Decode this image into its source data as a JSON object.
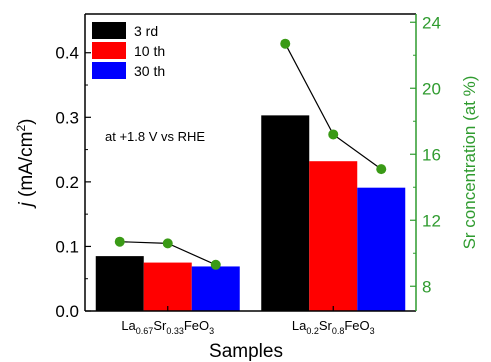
{
  "chart_data": {
    "type": "bar",
    "title": "",
    "xlabel": "Samples",
    "ylabel": "j (mA/cm2)",
    "ylabel_parts": {
      "italic": "j",
      "main": " (mA/cm",
      "sup": "2",
      "end": ")"
    },
    "ylabel_right": "Sr concentration (at %)",
    "ylim": [
      0,
      0.46
    ],
    "ylim_right": [
      6.5,
      24.5
    ],
    "yticks": [
      0.0,
      0.1,
      0.2,
      0.3,
      0.4
    ],
    "ytick_labels": [
      "0.0",
      "0.1",
      "0.2",
      "0.3",
      "0.4"
    ],
    "yticks_right": [
      8,
      12,
      16,
      20,
      24
    ],
    "ytick_labels_right": [
      "8",
      "12",
      "16",
      "20",
      "24"
    ],
    "categories": [
      {
        "label": "La0.67Sr0.33FeO3",
        "parts": [
          [
            "La",
            "n"
          ],
          [
            "0.67",
            "s"
          ],
          [
            "Sr",
            "n"
          ],
          [
            "0.33",
            "s"
          ],
          [
            "FeO",
            "n"
          ],
          [
            "3",
            "s"
          ]
        ]
      },
      {
        "label": "La0.2Sr0.8FeO3",
        "parts": [
          [
            "La",
            "n"
          ],
          [
            "0.2",
            "s"
          ],
          [
            "Sr",
            "n"
          ],
          [
            "0.8",
            "s"
          ],
          [
            "FeO",
            "n"
          ],
          [
            "3",
            "s"
          ]
        ]
      }
    ],
    "series": [
      {
        "name": "3 rd",
        "color": "#000000",
        "values": [
          0.085,
          0.303
        ]
      },
      {
        "name": "10 th",
        "color": "#ff0000",
        "values": [
          0.075,
          0.232
        ]
      },
      {
        "name": "30 th",
        "color": "#0000ff",
        "values": [
          0.069,
          0.191
        ]
      }
    ],
    "line_series": {
      "axis": "right",
      "color": "#2ca02c",
      "marker_color": "#3a9a16",
      "groups": [
        [
          10.7,
          10.6,
          9.3
        ],
        [
          22.7,
          17.2,
          15.1
        ]
      ]
    },
    "annotation": "at +1.8 V vs RHE",
    "legend_position": "top-left",
    "grid": false,
    "right_axis_color": "#2f9b2f"
  }
}
